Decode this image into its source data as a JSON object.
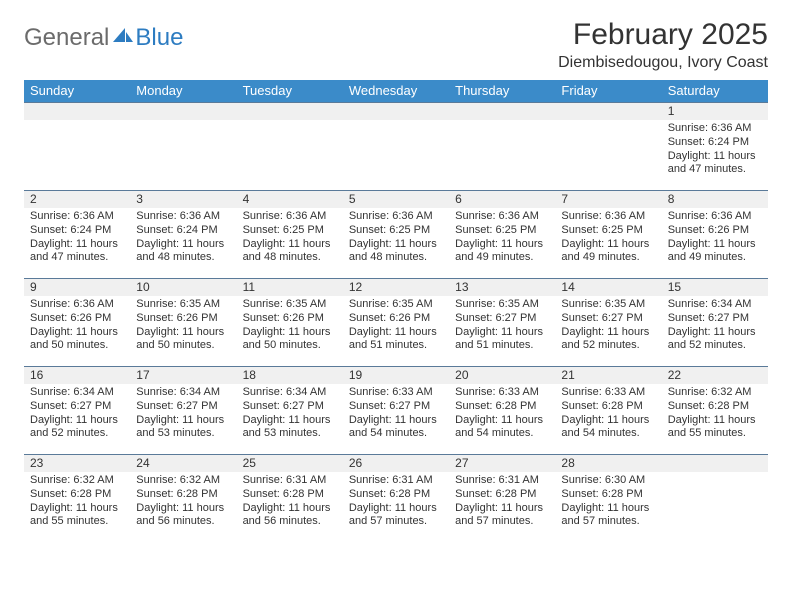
{
  "brand": {
    "text1": "General",
    "text2": "Blue"
  },
  "title": "February 2025",
  "location": "Diembisedougou, Ivory Coast",
  "colors": {
    "header_bg": "#3b8bc9",
    "header_text": "#ffffff",
    "daynum_bg": "#f0f0f0",
    "divider": "#5a7a99",
    "text": "#333333",
    "brand_gray": "#6b6b6b",
    "brand_blue": "#2d7cc1"
  },
  "week_days": [
    "Sunday",
    "Monday",
    "Tuesday",
    "Wednesday",
    "Thursday",
    "Friday",
    "Saturday"
  ],
  "weeks": [
    [
      null,
      null,
      null,
      null,
      null,
      null,
      {
        "n": "1",
        "sunrise": "Sunrise: 6:36 AM",
        "sunset": "Sunset: 6:24 PM",
        "day1": "Daylight: 11 hours",
        "day2": "and 47 minutes."
      }
    ],
    [
      {
        "n": "2",
        "sunrise": "Sunrise: 6:36 AM",
        "sunset": "Sunset: 6:24 PM",
        "day1": "Daylight: 11 hours",
        "day2": "and 47 minutes."
      },
      {
        "n": "3",
        "sunrise": "Sunrise: 6:36 AM",
        "sunset": "Sunset: 6:24 PM",
        "day1": "Daylight: 11 hours",
        "day2": "and 48 minutes."
      },
      {
        "n": "4",
        "sunrise": "Sunrise: 6:36 AM",
        "sunset": "Sunset: 6:25 PM",
        "day1": "Daylight: 11 hours",
        "day2": "and 48 minutes."
      },
      {
        "n": "5",
        "sunrise": "Sunrise: 6:36 AM",
        "sunset": "Sunset: 6:25 PM",
        "day1": "Daylight: 11 hours",
        "day2": "and 48 minutes."
      },
      {
        "n": "6",
        "sunrise": "Sunrise: 6:36 AM",
        "sunset": "Sunset: 6:25 PM",
        "day1": "Daylight: 11 hours",
        "day2": "and 49 minutes."
      },
      {
        "n": "7",
        "sunrise": "Sunrise: 6:36 AM",
        "sunset": "Sunset: 6:25 PM",
        "day1": "Daylight: 11 hours",
        "day2": "and 49 minutes."
      },
      {
        "n": "8",
        "sunrise": "Sunrise: 6:36 AM",
        "sunset": "Sunset: 6:26 PM",
        "day1": "Daylight: 11 hours",
        "day2": "and 49 minutes."
      }
    ],
    [
      {
        "n": "9",
        "sunrise": "Sunrise: 6:36 AM",
        "sunset": "Sunset: 6:26 PM",
        "day1": "Daylight: 11 hours",
        "day2": "and 50 minutes."
      },
      {
        "n": "10",
        "sunrise": "Sunrise: 6:35 AM",
        "sunset": "Sunset: 6:26 PM",
        "day1": "Daylight: 11 hours",
        "day2": "and 50 minutes."
      },
      {
        "n": "11",
        "sunrise": "Sunrise: 6:35 AM",
        "sunset": "Sunset: 6:26 PM",
        "day1": "Daylight: 11 hours",
        "day2": "and 50 minutes."
      },
      {
        "n": "12",
        "sunrise": "Sunrise: 6:35 AM",
        "sunset": "Sunset: 6:26 PM",
        "day1": "Daylight: 11 hours",
        "day2": "and 51 minutes."
      },
      {
        "n": "13",
        "sunrise": "Sunrise: 6:35 AM",
        "sunset": "Sunset: 6:27 PM",
        "day1": "Daylight: 11 hours",
        "day2": "and 51 minutes."
      },
      {
        "n": "14",
        "sunrise": "Sunrise: 6:35 AM",
        "sunset": "Sunset: 6:27 PM",
        "day1": "Daylight: 11 hours",
        "day2": "and 52 minutes."
      },
      {
        "n": "15",
        "sunrise": "Sunrise: 6:34 AM",
        "sunset": "Sunset: 6:27 PM",
        "day1": "Daylight: 11 hours",
        "day2": "and 52 minutes."
      }
    ],
    [
      {
        "n": "16",
        "sunrise": "Sunrise: 6:34 AM",
        "sunset": "Sunset: 6:27 PM",
        "day1": "Daylight: 11 hours",
        "day2": "and 52 minutes."
      },
      {
        "n": "17",
        "sunrise": "Sunrise: 6:34 AM",
        "sunset": "Sunset: 6:27 PM",
        "day1": "Daylight: 11 hours",
        "day2": "and 53 minutes."
      },
      {
        "n": "18",
        "sunrise": "Sunrise: 6:34 AM",
        "sunset": "Sunset: 6:27 PM",
        "day1": "Daylight: 11 hours",
        "day2": "and 53 minutes."
      },
      {
        "n": "19",
        "sunrise": "Sunrise: 6:33 AM",
        "sunset": "Sunset: 6:27 PM",
        "day1": "Daylight: 11 hours",
        "day2": "and 54 minutes."
      },
      {
        "n": "20",
        "sunrise": "Sunrise: 6:33 AM",
        "sunset": "Sunset: 6:28 PM",
        "day1": "Daylight: 11 hours",
        "day2": "and 54 minutes."
      },
      {
        "n": "21",
        "sunrise": "Sunrise: 6:33 AM",
        "sunset": "Sunset: 6:28 PM",
        "day1": "Daylight: 11 hours",
        "day2": "and 54 minutes."
      },
      {
        "n": "22",
        "sunrise": "Sunrise: 6:32 AM",
        "sunset": "Sunset: 6:28 PM",
        "day1": "Daylight: 11 hours",
        "day2": "and 55 minutes."
      }
    ],
    [
      {
        "n": "23",
        "sunrise": "Sunrise: 6:32 AM",
        "sunset": "Sunset: 6:28 PM",
        "day1": "Daylight: 11 hours",
        "day2": "and 55 minutes."
      },
      {
        "n": "24",
        "sunrise": "Sunrise: 6:32 AM",
        "sunset": "Sunset: 6:28 PM",
        "day1": "Daylight: 11 hours",
        "day2": "and 56 minutes."
      },
      {
        "n": "25",
        "sunrise": "Sunrise: 6:31 AM",
        "sunset": "Sunset: 6:28 PM",
        "day1": "Daylight: 11 hours",
        "day2": "and 56 minutes."
      },
      {
        "n": "26",
        "sunrise": "Sunrise: 6:31 AM",
        "sunset": "Sunset: 6:28 PM",
        "day1": "Daylight: 11 hours",
        "day2": "and 57 minutes."
      },
      {
        "n": "27",
        "sunrise": "Sunrise: 6:31 AM",
        "sunset": "Sunset: 6:28 PM",
        "day1": "Daylight: 11 hours",
        "day2": "and 57 minutes."
      },
      {
        "n": "28",
        "sunrise": "Sunrise: 6:30 AM",
        "sunset": "Sunset: 6:28 PM",
        "day1": "Daylight: 11 hours",
        "day2": "and 57 minutes."
      },
      null
    ]
  ]
}
